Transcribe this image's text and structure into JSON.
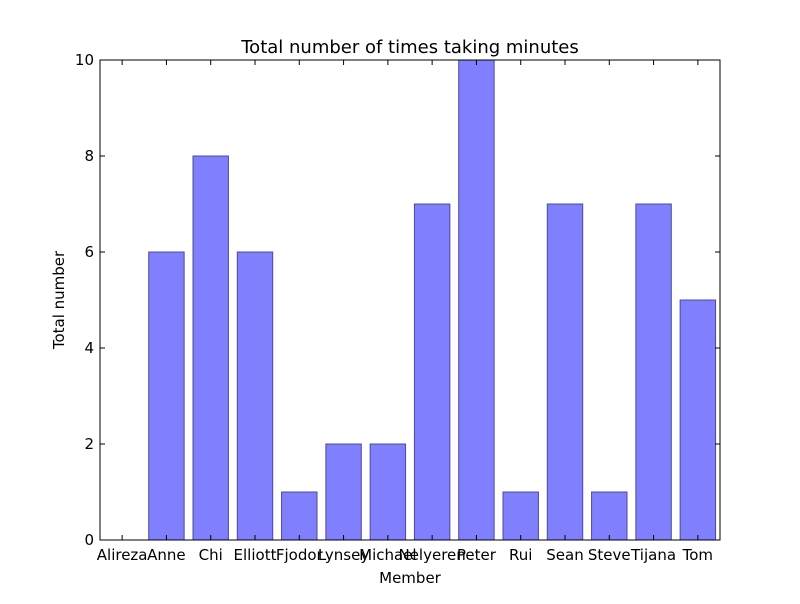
{
  "chart_data": {
    "type": "bar",
    "title": "Total number of times taking minutes",
    "xlabel": "Member",
    "ylabel": "Total number",
    "categories": [
      "Alireza",
      "Anne",
      "Chi",
      "Elliott",
      "Fjodor",
      "Lynsey",
      "Michael",
      "Nelyeren",
      "Peter",
      "Rui",
      "Sean",
      "Steve",
      "Tijana",
      "Tom"
    ],
    "values": [
      0,
      6,
      8,
      6,
      1,
      2,
      2,
      7,
      10,
      1,
      7,
      1,
      7,
      5
    ],
    "ylim": [
      0,
      10
    ],
    "yticks": [
      0,
      2,
      4,
      6,
      8,
      10
    ],
    "grid": false,
    "legend": "none",
    "colors": {
      "bar_fill": "#8080ff",
      "bar_edge": "#4a4a9a",
      "axes": "#000000"
    }
  }
}
